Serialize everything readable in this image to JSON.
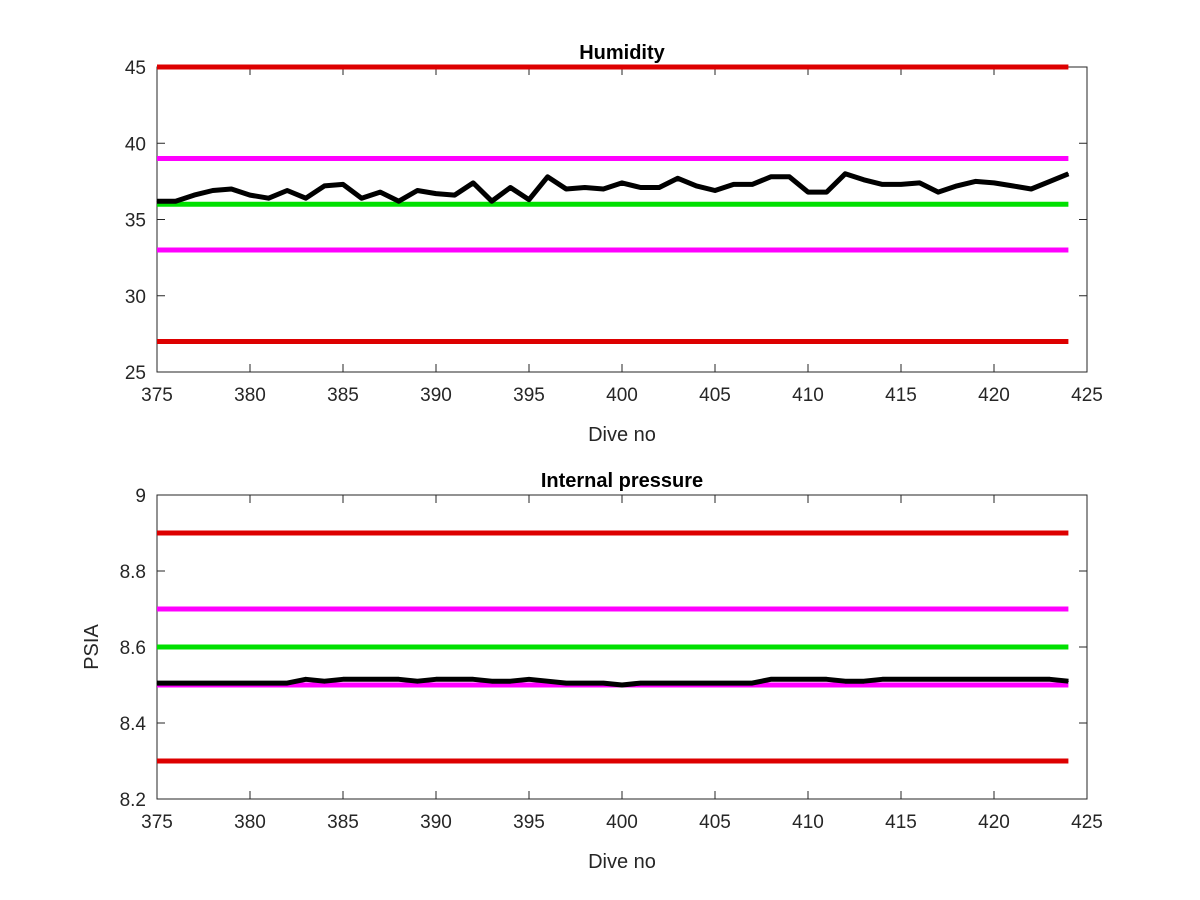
{
  "chart_data": [
    {
      "type": "line",
      "title": "Humidity",
      "xlabel": "Dive no",
      "ylabel": "",
      "xlim": [
        375,
        425
      ],
      "ylim": [
        25,
        45
      ],
      "xticks": [
        "375",
        "380",
        "385",
        "390",
        "395",
        "400",
        "405",
        "410",
        "415",
        "420",
        "425"
      ],
      "yticks": [
        "25",
        "30",
        "35",
        "40",
        "45"
      ],
      "grid": false,
      "limits": [
        {
          "value": 45,
          "color": "#dd0000"
        },
        {
          "value": 39,
          "color": "#ff00ff"
        },
        {
          "value": 36,
          "color": "#00e000"
        },
        {
          "value": 33,
          "color": "#ff00ff"
        },
        {
          "value": 27,
          "color": "#dd0000"
        }
      ],
      "series": [
        {
          "color": "#000000",
          "x": [
            375,
            376,
            377,
            378,
            379,
            380,
            381,
            382,
            383,
            384,
            385,
            386,
            387,
            388,
            389,
            390,
            391,
            392,
            393,
            394,
            395,
            396,
            397,
            398,
            399,
            400,
            401,
            402,
            403,
            404,
            405,
            406,
            407,
            408,
            409,
            410,
            411,
            412,
            413,
            414,
            415,
            416,
            417,
            418,
            419,
            420,
            421,
            422,
            423,
            424
          ],
          "values": [
            36.2,
            36.2,
            36.6,
            36.9,
            37.0,
            36.6,
            36.4,
            36.9,
            36.4,
            37.2,
            37.3,
            36.4,
            36.8,
            36.2,
            36.9,
            36.7,
            36.6,
            37.4,
            36.2,
            37.1,
            36.3,
            37.8,
            37.0,
            37.1,
            37.0,
            37.4,
            37.1,
            37.1,
            37.7,
            37.2,
            36.9,
            37.3,
            37.3,
            37.8,
            37.8,
            36.8,
            36.8,
            38.0,
            37.6,
            37.3,
            37.3,
            37.4,
            36.8,
            37.2,
            37.5,
            37.4,
            37.2,
            37.0,
            37.5,
            38.0
          ]
        }
      ]
    },
    {
      "type": "line",
      "title": "Internal pressure",
      "xlabel": "Dive no",
      "ylabel": "PSIA",
      "xlim": [
        375,
        425
      ],
      "ylim": [
        8.2,
        9
      ],
      "xticks": [
        "375",
        "380",
        "385",
        "390",
        "395",
        "400",
        "405",
        "410",
        "415",
        "420",
        "425"
      ],
      "yticks": [
        "8.2",
        "8.4",
        "8.6",
        "8.8",
        "9"
      ],
      "grid": false,
      "limits": [
        {
          "value": 8.9,
          "color": "#dd0000"
        },
        {
          "value": 8.7,
          "color": "#ff00ff"
        },
        {
          "value": 8.6,
          "color": "#00e000"
        },
        {
          "value": 8.5,
          "color": "#ff00ff"
        },
        {
          "value": 8.3,
          "color": "#dd0000"
        }
      ],
      "series": [
        {
          "color": "#000000",
          "x": [
            375,
            376,
            377,
            378,
            379,
            380,
            381,
            382,
            383,
            384,
            385,
            386,
            387,
            388,
            389,
            390,
            391,
            392,
            393,
            394,
            395,
            396,
            397,
            398,
            399,
            400,
            401,
            402,
            403,
            404,
            405,
            406,
            407,
            408,
            409,
            410,
            411,
            412,
            413,
            414,
            415,
            416,
            417,
            418,
            419,
            420,
            421,
            422,
            423,
            424
          ],
          "values": [
            8.505,
            8.505,
            8.505,
            8.505,
            8.505,
            8.505,
            8.505,
            8.505,
            8.515,
            8.51,
            8.515,
            8.515,
            8.515,
            8.515,
            8.51,
            8.515,
            8.515,
            8.515,
            8.51,
            8.51,
            8.515,
            8.51,
            8.505,
            8.505,
            8.505,
            8.5,
            8.505,
            8.505,
            8.505,
            8.505,
            8.505,
            8.505,
            8.505,
            8.515,
            8.515,
            8.515,
            8.515,
            8.51,
            8.51,
            8.515,
            8.515,
            8.515,
            8.515,
            8.515,
            8.515,
            8.515,
            8.515,
            8.515,
            8.515,
            8.51
          ]
        }
      ]
    }
  ]
}
